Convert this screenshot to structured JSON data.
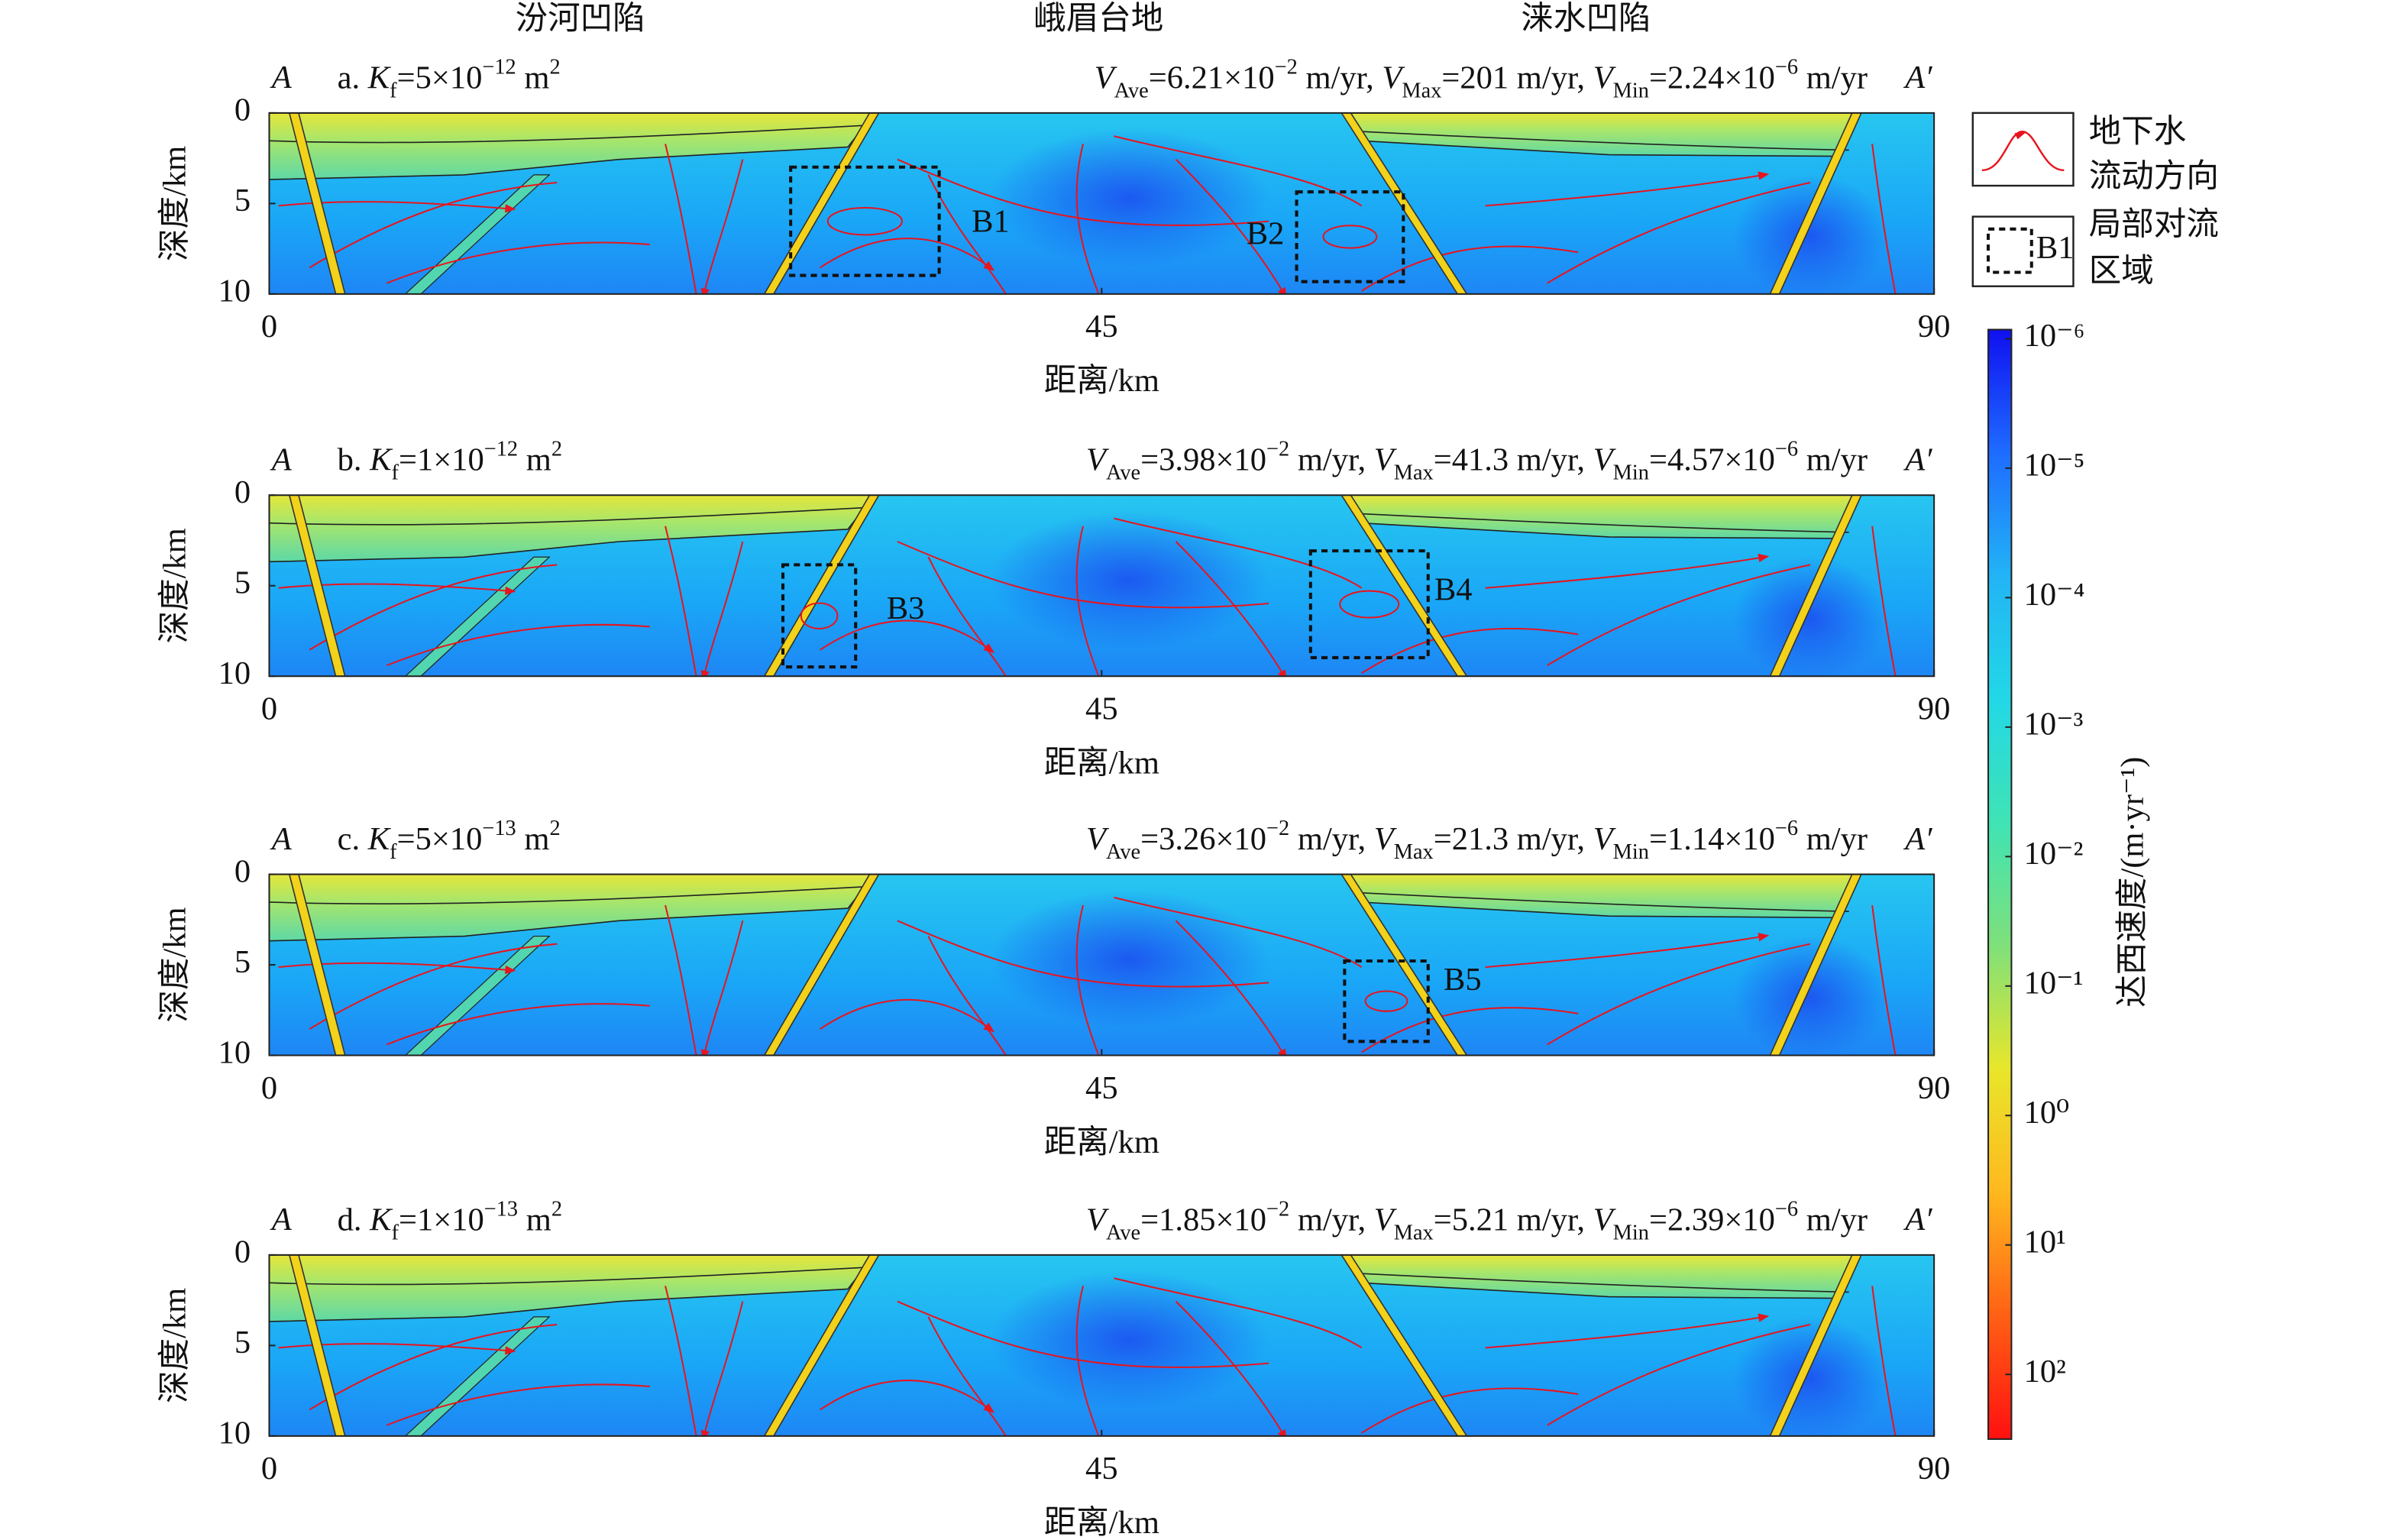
{
  "region_labels": [
    "汾河凹陷",
    "峨眉台地",
    "涞水凹陷"
  ],
  "chart_data": [
    {
      "type": "section",
      "title": [
        "a. ",
        "K",
        {
          "sub": "f"
        },
        "=5×10",
        {
          "sup": "−12"
        },
        " m",
        {
          "sup": "2"
        }
      ],
      "stats": [
        "V",
        {
          "sub": "Ave"
        },
        "=6.21×10",
        {
          "sup": "−2"
        },
        " m/yr, ",
        "V",
        {
          "sub": "Max"
        },
        "=201 m/yr, ",
        "V",
        {
          "sub": "Min"
        },
        "=2.24×10",
        {
          "sup": "−6"
        },
        " m/yr"
      ],
      "endpoints": [
        "A",
        "A′"
      ],
      "xlabel": "距离/km",
      "ylabel": "深度/km",
      "xlim": [
        0,
        90
      ],
      "ylim": [
        0,
        10
      ],
      "invert_y": true,
      "xticks": [
        0,
        45,
        90
      ],
      "yticks": [
        0,
        5,
        10
      ],
      "annotations": [
        "B1",
        "B2"
      ]
    },
    {
      "type": "section",
      "title": [
        "b. ",
        "K",
        {
          "sub": "f"
        },
        "=1×10",
        {
          "sup": "−12"
        },
        " m",
        {
          "sup": "2"
        }
      ],
      "stats": [
        "V",
        {
          "sub": "Ave"
        },
        "=3.98×10",
        {
          "sup": "−2"
        },
        " m/yr, ",
        "V",
        {
          "sub": "Max"
        },
        "=41.3 m/yr, ",
        "V",
        {
          "sub": "Min"
        },
        "=4.57×10",
        {
          "sup": "−6"
        },
        " m/yr"
      ],
      "endpoints": [
        "A",
        "A′"
      ],
      "xlabel": "距离/km",
      "ylabel": "深度/km",
      "xlim": [
        0,
        90
      ],
      "ylim": [
        0,
        10
      ],
      "invert_y": true,
      "xticks": [
        0,
        45,
        90
      ],
      "yticks": [
        0,
        5,
        10
      ],
      "annotations": [
        "B3",
        "B4"
      ]
    },
    {
      "type": "section",
      "title": [
        "c. ",
        "K",
        {
          "sub": "f"
        },
        "=5×10",
        {
          "sup": "−13"
        },
        " m",
        {
          "sup": "2"
        }
      ],
      "stats": [
        "V",
        {
          "sub": "Ave"
        },
        "=3.26×10",
        {
          "sup": "−2"
        },
        " m/yr, ",
        "V",
        {
          "sub": "Max"
        },
        "=21.3 m/yr, ",
        "V",
        {
          "sub": "Min"
        },
        "=1.14×10",
        {
          "sup": "−6"
        },
        " m/yr"
      ],
      "endpoints": [
        "A",
        "A′"
      ],
      "xlabel": "距离/km",
      "ylabel": "深度/km",
      "xlim": [
        0,
        90
      ],
      "ylim": [
        0,
        10
      ],
      "invert_y": true,
      "xticks": [
        0,
        45,
        90
      ],
      "yticks": [
        0,
        5,
        10
      ],
      "annotations": [
        "B5"
      ]
    },
    {
      "type": "section",
      "title": [
        "d. ",
        "K",
        {
          "sub": "f"
        },
        "=1×10",
        {
          "sup": "−13"
        },
        " m",
        {
          "sup": "2"
        }
      ],
      "stats": [
        "V",
        {
          "sub": "Ave"
        },
        "=1.85×10",
        {
          "sup": "−2"
        },
        " m/yr, ",
        "V",
        {
          "sub": "Max"
        },
        "=5.21 m/yr, ",
        "V",
        {
          "sub": "Min"
        },
        "=2.39×10",
        {
          "sup": "−6"
        },
        " m/yr"
      ],
      "endpoints": [
        "A",
        "A′"
      ],
      "xlabel": "距离/km",
      "ylabel": "深度/km",
      "xlim": [
        0,
        90
      ],
      "ylim": [
        0,
        10
      ],
      "invert_y": true,
      "xticks": [
        0,
        45,
        90
      ],
      "yticks": [
        0,
        5,
        10
      ],
      "annotations": []
    }
  ],
  "legend": {
    "flow": [
      "地下水",
      "流动方向"
    ],
    "box": [
      "局部对流",
      "区域"
    ],
    "box_sample": "B1"
  },
  "colorbar": {
    "label": "达西速度/(m·yr⁻¹)",
    "log": true,
    "lim": [
      8.5e-07,
      316
    ],
    "colors": [
      "#1010f0",
      "#1e6cff",
      "#22b4f5",
      "#22d8e6",
      "#3fe3b4",
      "#7fe07a",
      "#e8e62a",
      "#ffb81e",
      "#ff6014",
      "#ff1010"
    ],
    "ticks": [
      {
        "value": 1e-06,
        "label": "10⁻⁶"
      },
      {
        "value": 1e-05,
        "label": "10⁻⁵"
      },
      {
        "value": 0.0001,
        "label": "10⁻⁴"
      },
      {
        "value": 0.001,
        "label": "10⁻³"
      },
      {
        "value": 0.01,
        "label": "10⁻²"
      },
      {
        "value": 0.1,
        "label": "10⁻¹"
      },
      {
        "value": 1,
        "label": "10⁰"
      },
      {
        "value": 10,
        "label": "10¹"
      },
      {
        "value": 100,
        "label": "10²"
      }
    ]
  }
}
